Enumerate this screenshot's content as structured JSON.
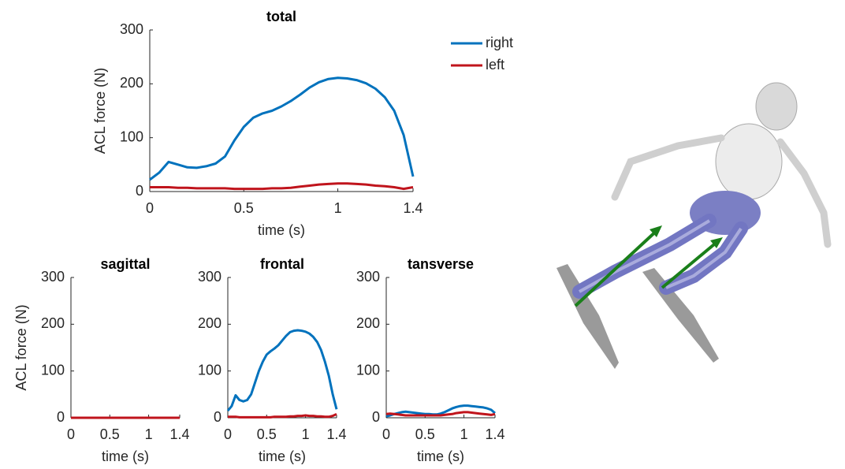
{
  "chart_data": [
    {
      "type": "line",
      "title": "total",
      "xlabel": "time (s)",
      "ylabel": "ACL force (N)",
      "legend": "right",
      "xlim": [
        0,
        1.4
      ],
      "ylim": [
        0,
        300
      ],
      "xticks": [
        0,
        0.5,
        1,
        1.4
      ],
      "yticks": [
        0,
        100,
        200,
        300
      ],
      "x": [
        0,
        0.05,
        0.1,
        0.15,
        0.2,
        0.25,
        0.3,
        0.35,
        0.4,
        0.45,
        0.5,
        0.55,
        0.6,
        0.65,
        0.7,
        0.75,
        0.8,
        0.85,
        0.9,
        0.95,
        1,
        1.05,
        1.1,
        1.15,
        1.2,
        1.25,
        1.3,
        1.35,
        1.4
      ],
      "series": [
        {
          "name": "right",
          "color": "#0072bd",
          "values": [
            22,
            35,
            55,
            50,
            45,
            44,
            47,
            52,
            65,
            95,
            120,
            137,
            145,
            150,
            158,
            168,
            180,
            193,
            203,
            209,
            211,
            210,
            207,
            201,
            191,
            175,
            150,
            105,
            28
          ]
        },
        {
          "name": "left",
          "color": "#c0141c",
          "values": [
            8,
            8,
            8,
            7,
            7,
            6,
            6,
            6,
            6,
            5,
            5,
            5,
            5,
            6,
            6,
            7,
            9,
            11,
            13,
            14,
            15,
            15,
            14,
            13,
            11,
            10,
            8,
            5,
            8
          ]
        }
      ]
    },
    {
      "type": "line",
      "title": "sagittal",
      "xlabel": "time (s)",
      "ylabel": "ACL force (N)",
      "xlim": [
        0,
        1.4
      ],
      "ylim": [
        0,
        300
      ],
      "xticks": [
        0,
        0.5,
        1,
        1.4
      ],
      "yticks": [
        0,
        100,
        200,
        300
      ],
      "x": [
        0,
        0.05,
        0.1,
        0.15,
        0.2,
        0.25,
        0.3,
        0.35,
        0.4,
        0.45,
        0.5,
        0.55,
        0.6,
        0.65,
        0.7,
        0.75,
        0.8,
        0.85,
        0.9,
        0.95,
        1,
        1.05,
        1.1,
        1.15,
        1.2,
        1.25,
        1.3,
        1.35,
        1.4
      ],
      "series": [
        {
          "color": "#0072bd",
          "values": [
            0,
            0,
            0,
            0,
            0,
            0,
            0,
            0,
            0,
            0,
            0,
            0,
            0,
            0,
            0,
            0,
            0,
            0,
            0,
            0,
            0,
            0,
            0,
            0,
            0,
            0,
            0,
            0,
            0
          ]
        },
        {
          "color": "#c0141c",
          "values": [
            0,
            0,
            0,
            0,
            0,
            0,
            0,
            0,
            0,
            0,
            0,
            0,
            0,
            0,
            0,
            0,
            0,
            0,
            0,
            0,
            0,
            0,
            0,
            0,
            0,
            0,
            0,
            0,
            0
          ]
        }
      ]
    },
    {
      "type": "line",
      "title": "frontal",
      "xlabel": "time (s)",
      "xlim": [
        0,
        1.4
      ],
      "ylim": [
        0,
        300
      ],
      "xticks": [
        0,
        0.5,
        1,
        1.4
      ],
      "yticks": [
        0,
        100,
        200,
        300
      ],
      "x": [
        0,
        0.05,
        0.1,
        0.15,
        0.2,
        0.25,
        0.3,
        0.35,
        0.4,
        0.45,
        0.5,
        0.55,
        0.6,
        0.65,
        0.7,
        0.75,
        0.8,
        0.85,
        0.9,
        0.95,
        1,
        1.05,
        1.1,
        1.15,
        1.2,
        1.25,
        1.3,
        1.35,
        1.4
      ],
      "series": [
        {
          "color": "#0072bd",
          "values": [
            15,
            25,
            48,
            38,
            35,
            38,
            50,
            75,
            100,
            120,
            135,
            142,
            148,
            155,
            165,
            175,
            183,
            186,
            187,
            186,
            184,
            180,
            173,
            162,
            145,
            120,
            90,
            50,
            18
          ]
        },
        {
          "color": "#c0141c",
          "values": [
            2,
            2,
            2,
            1,
            1,
            1,
            1,
            1,
            1,
            1,
            1,
            1,
            2,
            2,
            2,
            2,
            3,
            3,
            4,
            4,
            5,
            4,
            4,
            3,
            3,
            2,
            2,
            4,
            8
          ]
        }
      ]
    },
    {
      "type": "line",
      "title": "tansverse",
      "xlabel": "time (s)",
      "xlim": [
        0,
        1.4
      ],
      "ylim": [
        0,
        300
      ],
      "xticks": [
        0,
        0.5,
        1,
        1.4
      ],
      "yticks": [
        0,
        100,
        200,
        300
      ],
      "x": [
        0,
        0.05,
        0.1,
        0.15,
        0.2,
        0.25,
        0.3,
        0.35,
        0.4,
        0.45,
        0.5,
        0.55,
        0.6,
        0.65,
        0.7,
        0.75,
        0.8,
        0.85,
        0.9,
        0.95,
        1,
        1.05,
        1.1,
        1.15,
        1.2,
        1.25,
        1.3,
        1.35,
        1.4
      ],
      "series": [
        {
          "color": "#0072bd",
          "values": [
            3,
            5,
            8,
            10,
            12,
            13,
            12,
            11,
            10,
            9,
            8,
            8,
            7,
            7,
            9,
            12,
            16,
            20,
            23,
            25,
            26,
            26,
            25,
            24,
            23,
            22,
            20,
            17,
            10
          ]
        },
        {
          "color": "#c0141c",
          "values": [
            8,
            9,
            8,
            7,
            6,
            5,
            5,
            5,
            5,
            5,
            5,
            5,
            5,
            5,
            5,
            6,
            7,
            8,
            10,
            11,
            12,
            12,
            11,
            10,
            9,
            8,
            7,
            6,
            8
          ]
        }
      ]
    }
  ]
}
